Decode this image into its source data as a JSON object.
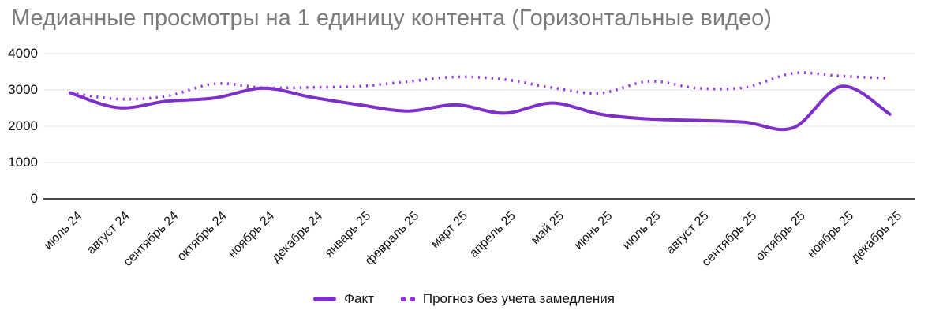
{
  "chart_data": {
    "type": "line",
    "title": "Медианные просмотры на 1 единицу контента (Горизонтальные видео)",
    "categories": [
      "июль 24",
      "август 24",
      "сентябрь 24",
      "октябрь 24",
      "ноябрь 24",
      "декабрь 24",
      "январь 25",
      "февраль 25",
      "март 25",
      "апрель 25",
      "май 25",
      "июнь 25",
      "июль 25",
      "август 25",
      "сентябрь 25",
      "октябрь 25",
      "ноябрь 25",
      "декабрь 25"
    ],
    "series": [
      {
        "name": "Факт",
        "style": "solid",
        "color": "#7e2fc8",
        "values": [
          2920,
          2510,
          2690,
          2780,
          3050,
          2800,
          2590,
          2420,
          2590,
          2360,
          2640,
          2330,
          2200,
          2160,
          2110,
          1960,
          3100,
          2330
        ]
      },
      {
        "name": "Прогноз без учета замедления",
        "style": "dotted",
        "color": "#9233e6",
        "values": [
          2920,
          2750,
          2830,
          3170,
          3060,
          3070,
          3100,
          3230,
          3360,
          3290,
          3060,
          2910,
          3240,
          3050,
          3070,
          3460,
          3380,
          3320
        ]
      }
    ],
    "xlabel": "",
    "ylabel": "",
    "ylim": [
      0,
      4000
    ],
    "yticks": [
      0,
      1000,
      2000,
      3000,
      4000
    ],
    "grid": true,
    "legend_position": "bottom",
    "colors": {
      "gridline": "#e3e3e3",
      "zero_axis": "#4a4a4a",
      "title_text": "#7b7b7b",
      "tick_text": "#111111"
    }
  }
}
